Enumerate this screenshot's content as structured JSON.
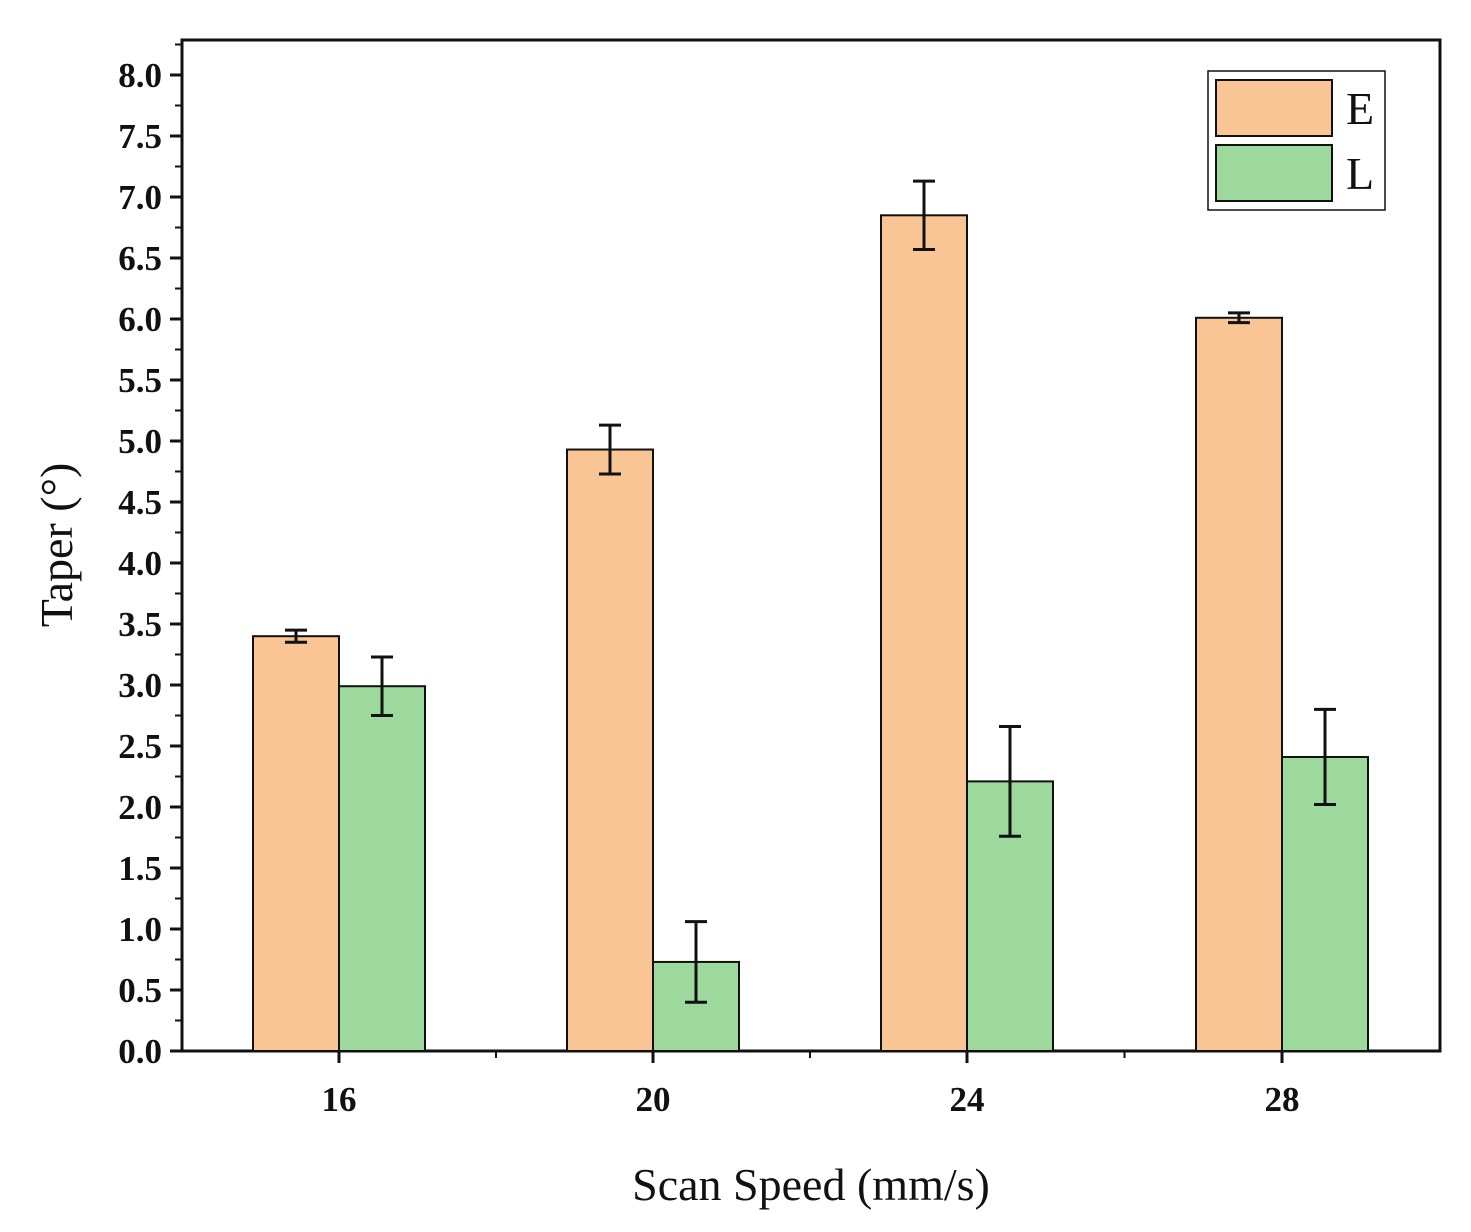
{
  "chart_data": {
    "type": "bar",
    "title": "",
    "xlabel": "Scan Speed (mm/s)",
    "ylabel": "Taper (°)",
    "categories": [
      "16",
      "20",
      "24",
      "28"
    ],
    "ylim": [
      0,
      8.2
    ],
    "yticks": [
      "0.0",
      "0.5",
      "1.0",
      "1.5",
      "2.0",
      "2.5",
      "3.0",
      "3.5",
      "4.0",
      "4.5",
      "5.0",
      "5.5",
      "6.0",
      "6.5",
      "7.0",
      "7.5",
      "8.0"
    ],
    "grid": false,
    "legend_position": "top-right",
    "series": [
      {
        "name": "E",
        "color": "#f9c594",
        "values": [
          3.4,
          4.93,
          6.85,
          6.01
        ],
        "errors": [
          0.05,
          0.2,
          0.28,
          0.04
        ]
      },
      {
        "name": "L",
        "color": "#9dd89c",
        "values": [
          2.99,
          0.73,
          2.21,
          2.41
        ],
        "errors": [
          0.24,
          0.33,
          0.45,
          0.39
        ]
      }
    ]
  }
}
